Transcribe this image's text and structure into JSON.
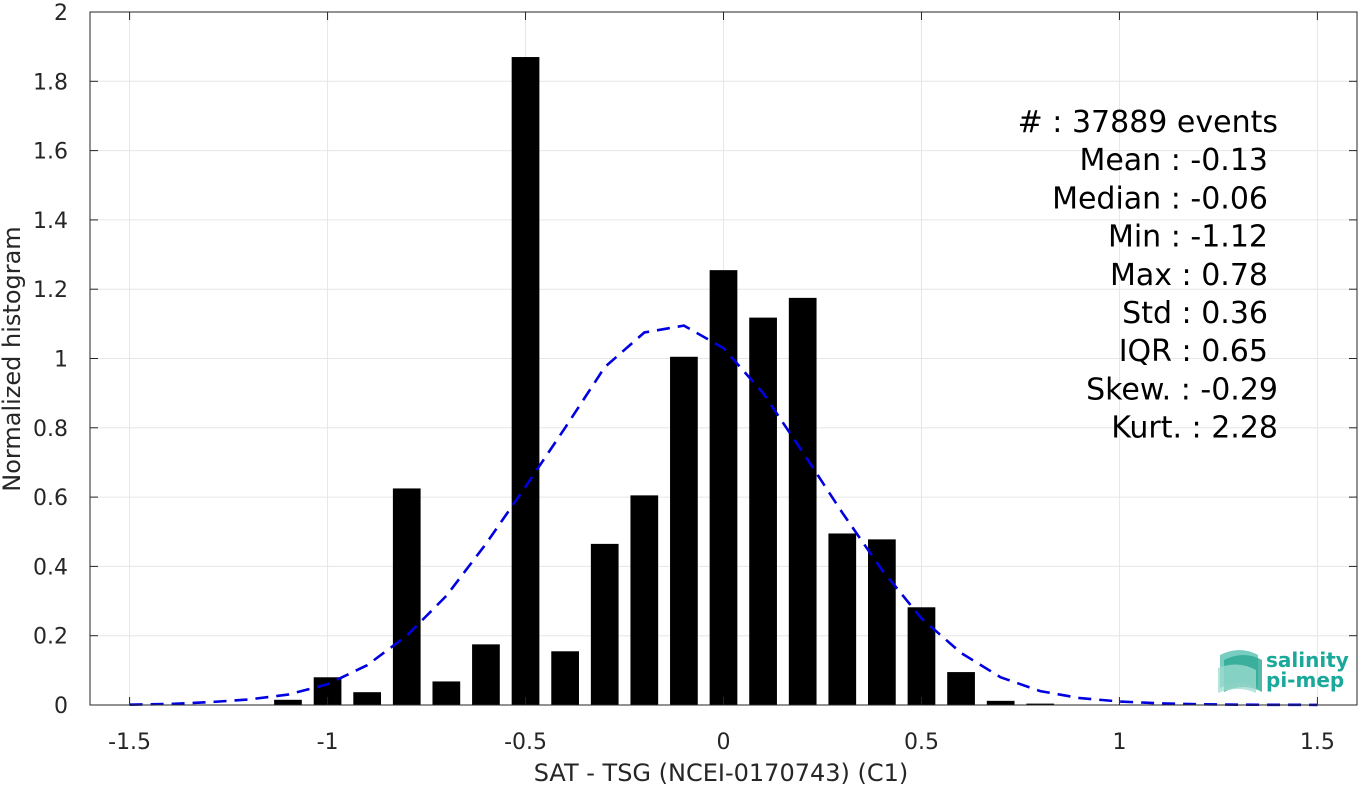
{
  "chart_data": {
    "type": "bar",
    "xlabel": "SAT - TSG (NCEI-0170743) (C1)",
    "ylabel": "Normalized histogram",
    "xlim": [
      -1.6,
      1.6
    ],
    "ylim": [
      0,
      2
    ],
    "xticks": [
      -1.5,
      -1,
      -0.5,
      0,
      0.5,
      1,
      1.5
    ],
    "xtick_labels": [
      "-1.5",
      "-1",
      "-0.5",
      "0",
      "0.5",
      "1",
      "1.5"
    ],
    "yticks": [
      0,
      0.2,
      0.4,
      0.6,
      0.8,
      1,
      1.2,
      1.4,
      1.6,
      1.8,
      2
    ],
    "ytick_labels": [
      "0",
      "0.2",
      "0.4",
      "0.6",
      "0.8",
      "1",
      "1.2",
      "1.4",
      "1.6",
      "1.8",
      "2"
    ],
    "grid": true,
    "bar_width": 0.07,
    "bars": [
      {
        "x": -1.1,
        "y": 0.015
      },
      {
        "x": -1.0,
        "y": 0.08
      },
      {
        "x": -0.9,
        "y": 0.037
      },
      {
        "x": -0.8,
        "y": 0.625
      },
      {
        "x": -0.7,
        "y": 0.068
      },
      {
        "x": -0.6,
        "y": 0.175
      },
      {
        "x": -0.5,
        "y": 1.87
      },
      {
        "x": -0.4,
        "y": 0.155
      },
      {
        "x": -0.3,
        "y": 0.465
      },
      {
        "x": -0.2,
        "y": 0.605
      },
      {
        "x": -0.1,
        "y": 1.005
      },
      {
        "x": 0.0,
        "y": 1.255
      },
      {
        "x": 0.1,
        "y": 1.118
      },
      {
        "x": 0.2,
        "y": 1.175
      },
      {
        "x": 0.3,
        "y": 0.495
      },
      {
        "x": 0.4,
        "y": 0.478
      },
      {
        "x": 0.5,
        "y": 0.282
      },
      {
        "x": 0.6,
        "y": 0.095
      },
      {
        "x": 0.7,
        "y": 0.012
      },
      {
        "x": 0.8,
        "y": 0.004
      }
    ],
    "fit_curve": {
      "style": "dashed",
      "color": "#0000e0",
      "points": [
        [
          -1.5,
          0.001
        ],
        [
          -1.4,
          0.003
        ],
        [
          -1.3,
          0.008
        ],
        [
          -1.2,
          0.016
        ],
        [
          -1.1,
          0.03
        ],
        [
          -1.0,
          0.06
        ],
        [
          -0.9,
          0.115
        ],
        [
          -0.8,
          0.2
        ],
        [
          -0.7,
          0.315
        ],
        [
          -0.6,
          0.465
        ],
        [
          -0.5,
          0.63
        ],
        [
          -0.4,
          0.8
        ],
        [
          -0.3,
          0.975
        ],
        [
          -0.2,
          1.075
        ],
        [
          -0.1,
          1.095
        ],
        [
          0.0,
          1.03
        ],
        [
          0.1,
          0.9
        ],
        [
          0.2,
          0.73
        ],
        [
          0.3,
          0.555
        ],
        [
          0.4,
          0.39
        ],
        [
          0.5,
          0.25
        ],
        [
          0.6,
          0.15
        ],
        [
          0.7,
          0.08
        ],
        [
          0.8,
          0.04
        ],
        [
          0.9,
          0.02
        ],
        [
          1.0,
          0.01
        ],
        [
          1.1,
          0.005
        ],
        [
          1.2,
          0.002
        ],
        [
          1.3,
          0.001
        ],
        [
          1.4,
          0.0005
        ],
        [
          1.5,
          0.0002
        ]
      ]
    },
    "annotations": [
      "#  : 37889 events",
      "Mean : -0.13",
      "Median : -0.06",
      "Min : -1.12",
      "Max : 0.78",
      "Std : 0.36",
      "IQR : 0.65",
      "Skew. : -0.29",
      "Kurt. : 2.28"
    ],
    "bar_color": "#000000"
  },
  "logo": {
    "line1": "salinity",
    "line2": "pi-mep",
    "color": "#1aa89a"
  }
}
